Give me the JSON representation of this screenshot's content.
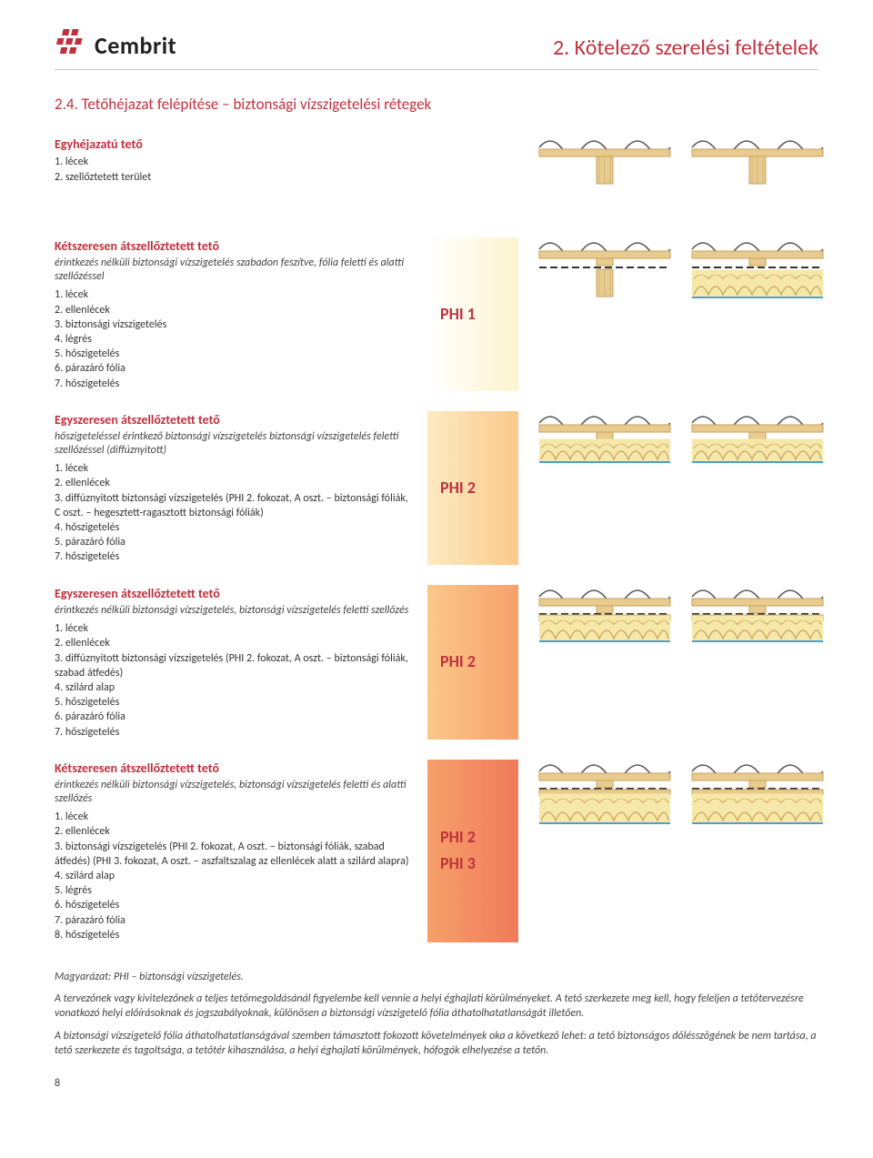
{
  "colors": {
    "brand_red": "#c0313e",
    "text": "#333333",
    "rule": "#cccccc",
    "wood_light": "#e8cc8f",
    "wood_dark": "#c9a05e",
    "insulation_yellow": "#f6e8a8",
    "insulation_stroke": "#c9a05e",
    "membrane_blue": "#4a9fd8",
    "slate": "#a8a49e"
  },
  "header": {
    "logo_text": "Cembrit",
    "page_title": "2. Kötelező szerelési feltételek"
  },
  "section_title": "2.4. Tetőhéjazat felépítése – biztonsági vízszigetelési rétegek",
  "blocks": [
    {
      "id": "b1",
      "heading": "Egyhéjazatú tető",
      "intro": "",
      "items": [
        "1. lécek",
        "2. szellőztetett terület"
      ],
      "phi": [],
      "gradient": "",
      "diagrams": [
        "simple",
        "simple"
      ]
    },
    {
      "id": "b2",
      "heading": "Kétszeresen átszellőztetett tető",
      "intro": "érintkezés nélküli biztonsági vízszigetelés szabadon feszítve, fólia feletti és alatti szellőzéssel",
      "items": [
        "1. lécek",
        "2. ellenlécek",
        "3. biztonsági vízszigetelés",
        "4. légrés",
        "5. hőszigetelés",
        "6. párazáró fólia",
        "7. hőszigetelés"
      ],
      "phi": [
        "PHI 1"
      ],
      "gradient": "gradient-1",
      "diagrams": [
        "membrane_gap",
        "insulated_gap"
      ]
    },
    {
      "id": "b3",
      "heading": "Egyszeresen átszellőztetett tető",
      "intro": "hőszigeteléssel érintkező biztonsági vízszigetelés biztonsági vízszigetelés feletti szellőzéssel (diffúznyitott)",
      "items": [
        "1. lécek",
        "2. ellenlécek",
        "3. diffúznyitott biztonsági vízszigetelés (PHI 2. fokozat, A oszt. – biztonsági fóliák, C oszt. – hegesztett-ragasztott biztonsági fóliák)",
        "4. hőszigetelés",
        "5. párazáró fólia",
        "7. hőszigetelés"
      ],
      "phi": [
        "PHI 2"
      ],
      "gradient": "gradient-2",
      "diagrams": [
        "insulated_contact",
        "insulated_contact"
      ]
    },
    {
      "id": "b4",
      "heading": "Egyszeresen átszellőztetett tető",
      "intro": "érintkezés nélküli biztonsági vízszigetelés, biztonsági vízszigetelés feletti szellőzés",
      "items": [
        "1. lécek",
        "2. ellenlécek",
        "3. diffúznyitott biztonsági vízszigetelés (PHI 2. fokozat, A oszt. – biztonsági fóliák, szabad átfedés)",
        "4. szilárd alap",
        "5. hőszigetelés",
        "6. párazáró fólia",
        "7. hőszigetelés"
      ],
      "phi": [
        "PHI 2"
      ],
      "gradient": "gradient-3",
      "diagrams": [
        "insulated_deck",
        "insulated_deck"
      ]
    },
    {
      "id": "b5",
      "heading": "Kétszeresen átszellőztetett tető",
      "intro": "érintkezés nélküli biztonsági vízszigetelés, biztonsági vízszigetelés feletti és alatti szellőzés",
      "items": [
        "1. lécek",
        "2. ellenlécek",
        "3. biztonsági vízszigetelés (PHI 2. fokozat, A oszt. – biztonsági fóliák, szabad átfedés) (PHI 3. fokozat, A oszt. – aszfaltszalag az ellenlécek alatt a szilárd alapra)",
        "4. szilárd alap",
        "5. légrés",
        "6. hőszigetelés",
        "7. párazáró fólia",
        "8. hőszigetelés"
      ],
      "phi": [
        "PHI 2",
        "PHI 3"
      ],
      "gradient": "gradient-4",
      "diagrams": [
        "insulated_double",
        "insulated_double"
      ]
    }
  ],
  "footnotes": [
    "Magyarázat: PHI – biztonsági vízszigetelés.",
    "A tervezőnek vagy kivitelezőnek a teljes tetőmegoldásánál figyelembe kell vennie a helyi éghajlati körülményeket. A tető szerkezete meg kell, hogy feleljen a tetőtervezésre vonatkozó helyi előírásoknak és jogszabályoknak, különösen a biztonsági vízszigetelő fólia áthatolhatatlanságát illetően.",
    "A biztonsági vízszigetelő fólia áthatolhatatlanságával szemben támasztott fokozott követelmények oka a következő lehet: a tető biztonságos dőlésszögének be nem tartása, a tető szerkezete és tagoltsága, a tetőtér kihasználása, a helyi éghajlati körülmények, hófogók elhelyezése a tetőn."
  ],
  "page_number": "8"
}
